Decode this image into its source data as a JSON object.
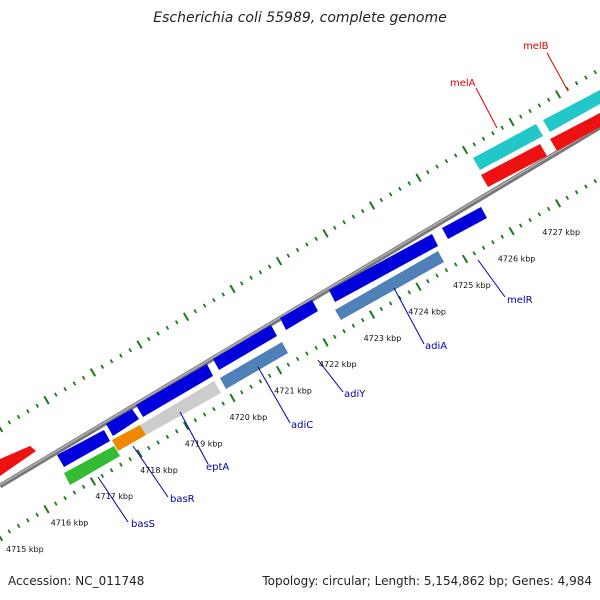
{
  "title": "Escherichia coli 55989, complete genome",
  "footer": {
    "accession_label": "Accession:",
    "accession": "NC_011748",
    "topology_label": "Topology:",
    "topology": "circular",
    "length_label": "Length:",
    "length": "5,154,862 bp",
    "genes_label": "Genes:",
    "genes": "4,984"
  },
  "colors": {
    "backbone": "#8a8a8a",
    "ticks": "#1a7a1a",
    "blue_cds": "#0000dd",
    "steelblue_cds": "#4f80b8",
    "cyan_cds": "#22c8c8",
    "red_cds": "#ee1111",
    "green_cds": "#33bb33",
    "orange_cds": "#ee8800",
    "gray_cds": "#cccccc",
    "blue_label": "#0000aa",
    "red_label": "#dd0000"
  },
  "position_ticks": [
    "4715 kbp",
    "4716 kbp",
    "4717 kbp",
    "4718 kbp",
    "4719 kbp",
    "4720 kbp",
    "4721 kbp",
    "4722 kbp",
    "4723 kbp",
    "4724 kbp",
    "4725 kbp",
    "4726 kbp",
    "4727 kbp"
  ],
  "gene_labels": {
    "basS": "basS",
    "basR": "basR",
    "eptA": "eptA",
    "adiC": "adiC",
    "adiY": "adiY",
    "adiA": "adiA",
    "melR": "melR",
    "melA": "melA",
    "melB": "melB"
  }
}
